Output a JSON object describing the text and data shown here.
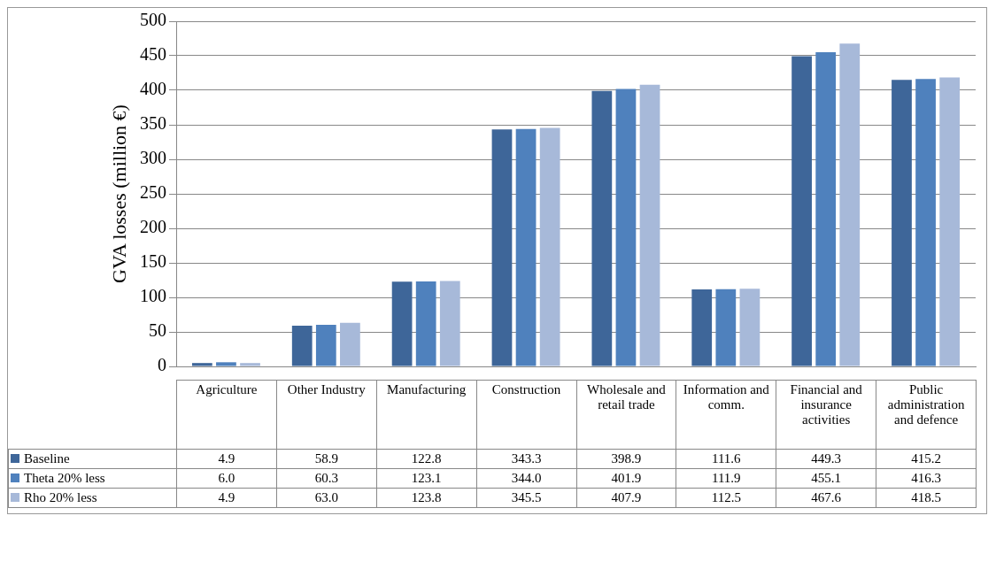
{
  "chart_data": {
    "type": "bar",
    "ylabel": "GVA losses (million €)",
    "categories": [
      "Agriculture",
      "Other Industry",
      "Manufacturing",
      "Construction",
      "Wholesale and retail trade",
      "Information and comm.",
      "Financial and insurance activities",
      "Public administration and defence"
    ],
    "series": [
      {
        "name": "Baseline",
        "color": "#3e6699",
        "values": [
          4.9,
          58.9,
          122.8,
          343.3,
          398.9,
          111.6,
          449.3,
          415.2
        ],
        "value_labels": [
          "4.9",
          "58.9",
          "122.8",
          "343.3",
          "398.9",
          "111.6",
          "449.3",
          "415.2"
        ]
      },
      {
        "name": "Theta 20% less",
        "color": "#4f81bd",
        "values": [
          6.0,
          60.3,
          123.1,
          344.0,
          401.9,
          111.9,
          455.1,
          416.3
        ],
        "value_labels": [
          "6.0",
          "60.3",
          "123.1",
          "344.0",
          "401.9",
          "111.9",
          "455.1",
          "416.3"
        ]
      },
      {
        "name": "Rho 20% less",
        "color": "#a7b9d9",
        "values": [
          4.9,
          63.0,
          123.8,
          345.5,
          407.9,
          112.5,
          467.6,
          418.5
        ],
        "value_labels": [
          "4.9",
          "63.0",
          "123.8",
          "345.5",
          "407.9",
          "112.5",
          "467.6",
          "418.5"
        ]
      }
    ],
    "ylim": [
      0,
      500
    ],
    "yticks": [
      0,
      50,
      100,
      150,
      200,
      250,
      300,
      350,
      400,
      450,
      500
    ],
    "grid": "y",
    "legend": "bottom"
  }
}
